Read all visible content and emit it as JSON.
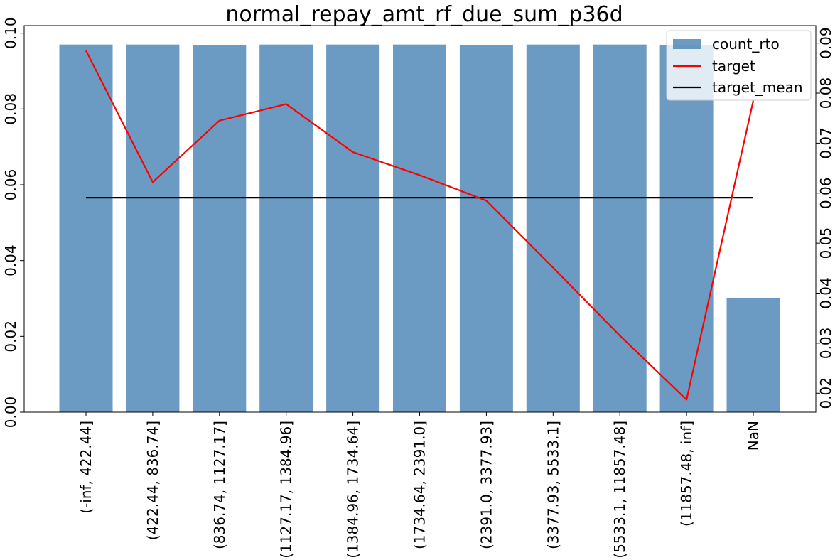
{
  "chart_data": {
    "type": "bar",
    "title": "normal_repay_amt_rf_due_sum_p36d",
    "categories": [
      "(-inf, 422.44]",
      "(422.44, 836.74]",
      "(836.74, 1127.17]",
      "(1127.17, 1384.96]",
      "(1384.96, 1734.64]",
      "(1734.64, 2391.0]",
      "(2391.0, 3377.93]",
      "(3377.93, 5533.1]",
      "(5533.1, 11857.48]",
      "(11857.48, inf]",
      "NaN"
    ],
    "series": [
      {
        "name": "count_rto",
        "type": "bar",
        "axis": "left",
        "color": "#4682b4",
        "values": [
          0.097,
          0.097,
          0.0968,
          0.097,
          0.097,
          0.097,
          0.0968,
          0.097,
          0.097,
          0.0969,
          0.0302
        ]
      },
      {
        "name": "target",
        "type": "line",
        "axis": "right",
        "color": "#ff0000",
        "values": [
          0.0885,
          0.0622,
          0.0745,
          0.0778,
          0.0682,
          0.0636,
          0.0585,
          0.0451,
          0.0315,
          0.0187,
          0.0785
        ]
      },
      {
        "name": "target_mean",
        "type": "line",
        "axis": "right",
        "color": "#000000",
        "values": [
          0.0591,
          0.0591,
          0.0591,
          0.0591,
          0.0591,
          0.0591,
          0.0591,
          0.0591,
          0.0591,
          0.0591,
          0.0591
        ]
      }
    ],
    "y_left": {
      "ylim": [
        0,
        0.102
      ],
      "ticks": [
        0.0,
        0.02,
        0.04,
        0.06,
        0.08,
        0.1
      ],
      "tick_labels": [
        "0.00",
        "0.02",
        "0.04",
        "0.06",
        "0.08",
        "0.10"
      ]
    },
    "y_right": {
      "ylim": [
        0.0162,
        0.0935
      ],
      "ticks": [
        0.02,
        0.03,
        0.04,
        0.05,
        0.06,
        0.07,
        0.08,
        0.09
      ],
      "tick_labels": [
        "0.02",
        "0.03",
        "0.04",
        "0.05",
        "0.06",
        "0.07",
        "0.08",
        "0.09"
      ]
    },
    "grid": false,
    "legend_position": "top-right"
  }
}
